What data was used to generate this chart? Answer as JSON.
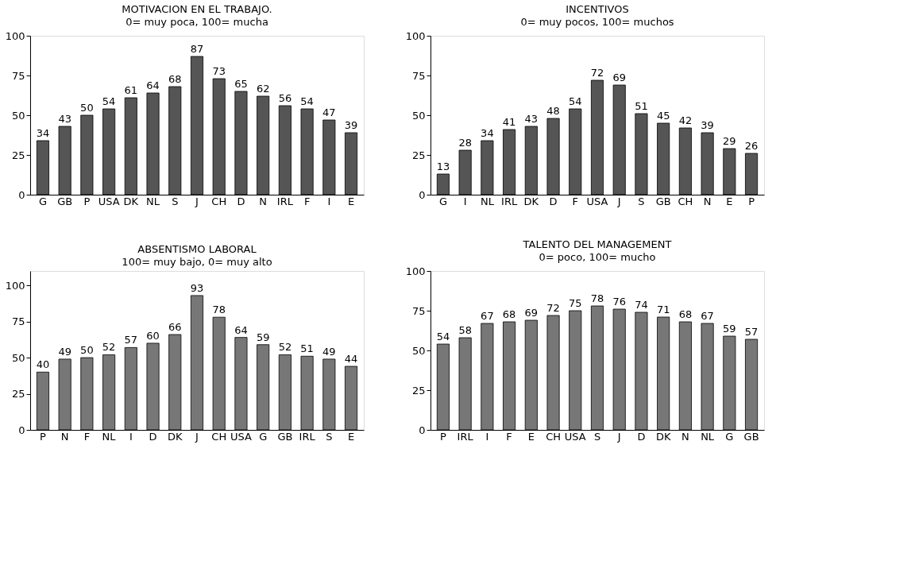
{
  "chart_data": [
    {
      "type": "bar",
      "title": "MOTIVACION EN EL TRABAJO.",
      "subtitle": "0= muy poca, 100= mucha",
      "categories": [
        "G",
        "GB",
        "P",
        "USA",
        "DK",
        "NL",
        "S",
        "J",
        "CH",
        "D",
        "N",
        "IRL",
        "F",
        "I",
        "E"
      ],
      "values": [
        34,
        43,
        50,
        54,
        61,
        64,
        68,
        87,
        73,
        65,
        62,
        56,
        54,
        47,
        39
      ],
      "color": "#555555",
      "ylim": [
        0,
        100
      ],
      "yticks": [
        0,
        25,
        50,
        75,
        100
      ],
      "grid": false,
      "data_labels": true
    },
    {
      "type": "bar",
      "title": "INCENTIVOS",
      "subtitle": "0= muy pocos, 100= muchos",
      "categories": [
        "G",
        "I",
        "NL",
        "IRL",
        "DK",
        "D",
        "F",
        "USA",
        "J",
        "S",
        "GB",
        "CH",
        "N",
        "E",
        "P"
      ],
      "values": [
        13,
        28,
        34,
        41,
        43,
        48,
        54,
        72,
        69,
        51,
        45,
        42,
        39,
        29,
        26
      ],
      "color": "#555555",
      "ylim": [
        0,
        100
      ],
      "yticks": [
        0,
        25,
        50,
        75,
        100
      ],
      "grid": false,
      "data_labels": true
    },
    {
      "type": "bar",
      "title": "ABSENTISMO LABORAL",
      "subtitle": "100= muy bajo, 0= muy alto",
      "categories": [
        "P",
        "N",
        "F",
        "NL",
        "I",
        "D",
        "DK",
        "J",
        "CH",
        "USA",
        "G",
        "GB",
        "IRL",
        "S",
        "E"
      ],
      "values": [
        40,
        49,
        50,
        52,
        57,
        60,
        66,
        93,
        78,
        64,
        59,
        52,
        51,
        49,
        44
      ],
      "color": "#777777",
      "ylim": [
        0,
        110
      ],
      "yticks": [
        0,
        25,
        50,
        75,
        100
      ],
      "grid": false,
      "data_labels": true
    },
    {
      "type": "bar",
      "title": "TALENTO DEL MANAGEMENT",
      "subtitle": "0= poco, 100= mucho",
      "categories": [
        "P",
        "IRL",
        "I",
        "F",
        "E",
        "CH",
        "USA",
        "S",
        "J",
        "D",
        "DK",
        "N",
        "NL",
        "G",
        "GB"
      ],
      "values": [
        54,
        58,
        67,
        68,
        69,
        72,
        75,
        78,
        76,
        74,
        71,
        68,
        67,
        59,
        57
      ],
      "color": "#777777",
      "ylim": [
        0,
        100
      ],
      "yticks": [
        0,
        25,
        50,
        75,
        100
      ],
      "grid": false,
      "data_labels": true
    }
  ]
}
